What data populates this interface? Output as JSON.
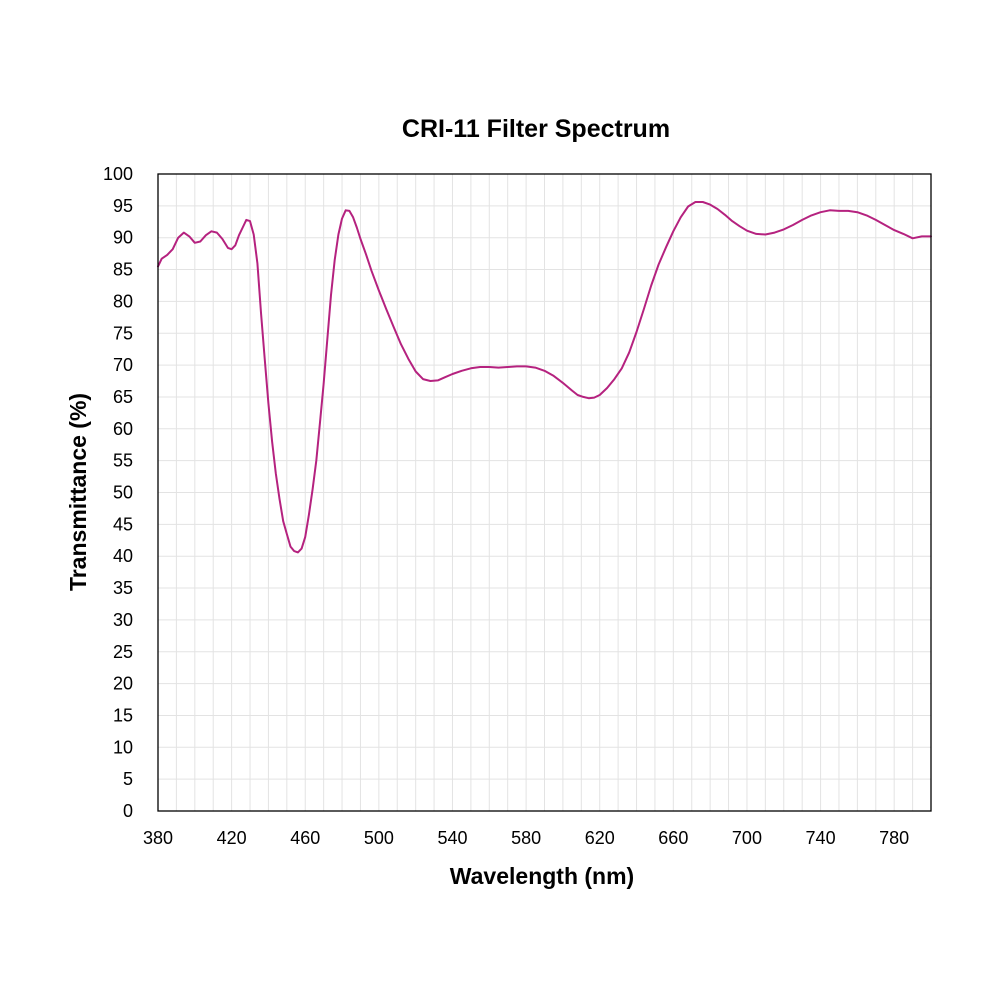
{
  "chart_data": {
    "type": "line",
    "title": "CRI-11 Filter Spectrum",
    "xlabel": "Wavelength (nm)",
    "ylabel": "Transmittance (%)",
    "xlim": [
      380,
      800
    ],
    "ylim": [
      0,
      100
    ],
    "x_ticks": [
      380,
      420,
      460,
      500,
      540,
      580,
      620,
      660,
      700,
      740,
      780
    ],
    "y_ticks": [
      0,
      5,
      10,
      15,
      20,
      25,
      30,
      35,
      40,
      45,
      50,
      55,
      60,
      65,
      70,
      75,
      80,
      85,
      90,
      95,
      100
    ],
    "grid": true,
    "series": [
      {
        "color": "#b5227f",
        "points": [
          [
            380,
            85.5
          ],
          [
            382,
            86.7
          ],
          [
            385,
            87.3
          ],
          [
            388,
            88.2
          ],
          [
            391,
            90.0
          ],
          [
            394,
            90.8
          ],
          [
            397,
            90.2
          ],
          [
            400,
            89.2
          ],
          [
            403,
            89.4
          ],
          [
            406,
            90.4
          ],
          [
            409,
            91.0
          ],
          [
            412,
            90.8
          ],
          [
            415,
            89.8
          ],
          [
            418,
            88.4
          ],
          [
            420,
            88.2
          ],
          [
            422,
            88.8
          ],
          [
            424,
            90.4
          ],
          [
            426,
            91.6
          ],
          [
            428,
            92.8
          ],
          [
            430,
            92.6
          ],
          [
            432,
            90.5
          ],
          [
            434,
            86.0
          ],
          [
            436,
            78.0
          ],
          [
            438,
            71.0
          ],
          [
            440,
            64.0
          ],
          [
            442,
            58.0
          ],
          [
            444,
            53.0
          ],
          [
            446,
            49.0
          ],
          [
            448,
            45.5
          ],
          [
            450,
            43.5
          ],
          [
            452,
            41.5
          ],
          [
            454,
            40.8
          ],
          [
            456,
            40.6
          ],
          [
            458,
            41.2
          ],
          [
            460,
            43.0
          ],
          [
            462,
            46.5
          ],
          [
            464,
            50.5
          ],
          [
            466,
            55.0
          ],
          [
            468,
            61.0
          ],
          [
            470,
            67.0
          ],
          [
            472,
            74.0
          ],
          [
            474,
            81.0
          ],
          [
            476,
            86.5
          ],
          [
            478,
            90.5
          ],
          [
            480,
            93.0
          ],
          [
            482,
            94.3
          ],
          [
            484,
            94.2
          ],
          [
            486,
            93.2
          ],
          [
            488,
            91.6
          ],
          [
            490,
            89.8
          ],
          [
            493,
            87.4
          ],
          [
            496,
            84.8
          ],
          [
            500,
            81.7
          ],
          [
            504,
            78.8
          ],
          [
            508,
            76.0
          ],
          [
            512,
            73.3
          ],
          [
            516,
            71.0
          ],
          [
            520,
            69.0
          ],
          [
            524,
            67.8
          ],
          [
            528,
            67.5
          ],
          [
            532,
            67.6
          ],
          [
            536,
            68.1
          ],
          [
            540,
            68.6
          ],
          [
            545,
            69.1
          ],
          [
            550,
            69.5
          ],
          [
            555,
            69.7
          ],
          [
            560,
            69.7
          ],
          [
            565,
            69.6
          ],
          [
            570,
            69.7
          ],
          [
            575,
            69.8
          ],
          [
            580,
            69.8
          ],
          [
            585,
            69.6
          ],
          [
            590,
            69.1
          ],
          [
            595,
            68.3
          ],
          [
            600,
            67.2
          ],
          [
            605,
            66.0
          ],
          [
            608,
            65.3
          ],
          [
            611,
            65.0
          ],
          [
            614,
            64.8
          ],
          [
            617,
            64.9
          ],
          [
            620,
            65.3
          ],
          [
            624,
            66.4
          ],
          [
            628,
            67.8
          ],
          [
            632,
            69.5
          ],
          [
            636,
            72.0
          ],
          [
            640,
            75.2
          ],
          [
            644,
            78.8
          ],
          [
            648,
            82.5
          ],
          [
            652,
            85.8
          ],
          [
            656,
            88.5
          ],
          [
            660,
            91.0
          ],
          [
            664,
            93.2
          ],
          [
            668,
            94.9
          ],
          [
            672,
            95.6
          ],
          [
            676,
            95.6
          ],
          [
            680,
            95.2
          ],
          [
            684,
            94.5
          ],
          [
            688,
            93.6
          ],
          [
            692,
            92.6
          ],
          [
            696,
            91.8
          ],
          [
            700,
            91.1
          ],
          [
            705,
            90.6
          ],
          [
            710,
            90.5
          ],
          [
            715,
            90.8
          ],
          [
            720,
            91.3
          ],
          [
            725,
            92.0
          ],
          [
            730,
            92.8
          ],
          [
            735,
            93.5
          ],
          [
            740,
            94.0
          ],
          [
            745,
            94.3
          ],
          [
            750,
            94.2
          ],
          [
            755,
            94.2
          ],
          [
            760,
            94.0
          ],
          [
            765,
            93.5
          ],
          [
            770,
            92.8
          ],
          [
            775,
            92.0
          ],
          [
            780,
            91.2
          ],
          [
            785,
            90.6
          ],
          [
            790,
            89.9
          ],
          [
            795,
            90.2
          ],
          [
            800,
            90.2
          ]
        ]
      }
    ]
  }
}
